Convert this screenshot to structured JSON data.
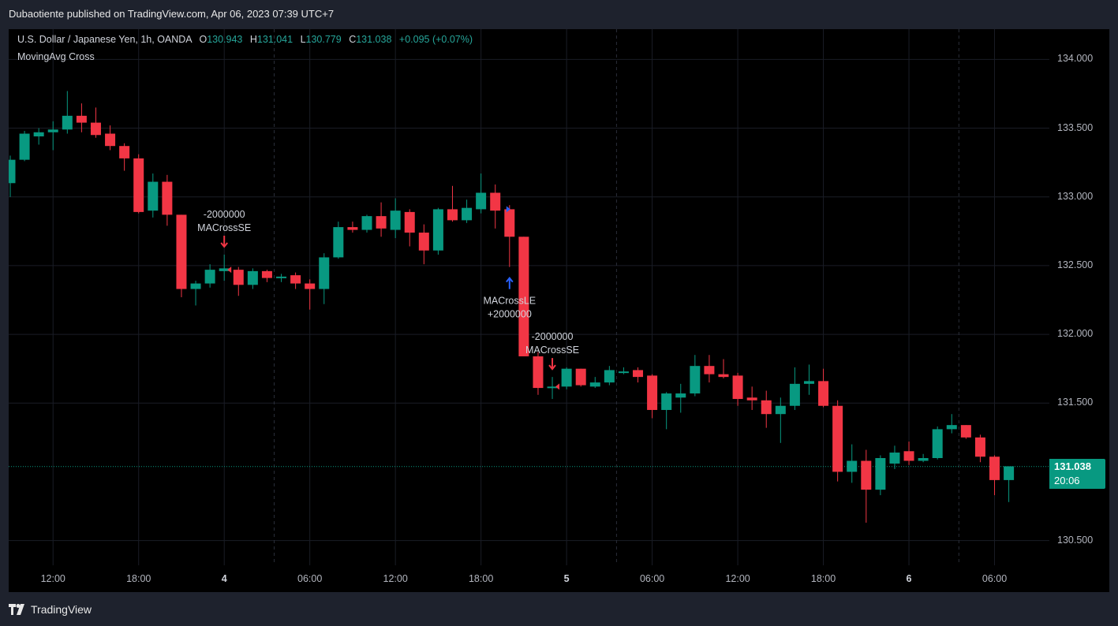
{
  "header": {
    "publisher": "Dubaotiente published on TradingView.com, Apr 06, 2023 07:39 UTC+7"
  },
  "legend": {
    "symbol": "U.S. Dollar / Japanese Yen, 1h, OANDA",
    "o_label": "O",
    "o": "130.943",
    "h_label": "H",
    "h": "131.041",
    "l_label": "L",
    "l": "130.779",
    "c_label": "C",
    "c": "131.038",
    "change": "+0.095 (+0.07%)",
    "indicator": "MovingAvg Cross"
  },
  "last_price": {
    "price": "131.038",
    "countdown": "20:06"
  },
  "footer": {
    "brand": "TradingView"
  },
  "colors": {
    "up": "#089981",
    "down": "#f23645",
    "long_signal": "#2962ff",
    "short_signal": "#f23645",
    "background": "#000000"
  },
  "icons": [
    "tradingview-logo-icon",
    "lightning-icon"
  ],
  "chart_data": {
    "type": "candlestick",
    "title": "U.S. Dollar / Japanese Yen, 1h, OANDA",
    "ylim": [
      130.32,
      134.22
    ],
    "price_ticks": [
      "134.000",
      "133.500",
      "133.000",
      "132.500",
      "132.000",
      "131.500",
      "130.500"
    ],
    "time_ticks": [
      {
        "label": "12:00",
        "bar": 3,
        "bold": false
      },
      {
        "label": "18:00",
        "bar": 9,
        "bold": false
      },
      {
        "label": "4",
        "bar": 15,
        "bold": true
      },
      {
        "label": "06:00",
        "bar": 21,
        "bold": false
      },
      {
        "label": "12:00",
        "bar": 27,
        "bold": false
      },
      {
        "label": "18:00",
        "bar": 33,
        "bold": false
      },
      {
        "label": "5",
        "bar": 39,
        "bold": true
      },
      {
        "label": "06:00",
        "bar": 45,
        "bold": false
      },
      {
        "label": "12:00",
        "bar": 51,
        "bold": false
      },
      {
        "label": "18:00",
        "bar": 57,
        "bold": false
      },
      {
        "label": "6",
        "bar": 63,
        "bold": true
      },
      {
        "label": "06:00",
        "bar": 69,
        "bold": false
      }
    ],
    "session_breaks": [
      18.5,
      42.5,
      66.5
    ],
    "last_price": 131.038,
    "candles": [
      {
        "o": 133.1,
        "h": 133.3,
        "l": 133.0,
        "c": 133.27
      },
      {
        "o": 133.27,
        "h": 133.48,
        "l": 133.26,
        "c": 133.46
      },
      {
        "o": 133.44,
        "h": 133.5,
        "l": 133.38,
        "c": 133.47
      },
      {
        "o": 133.47,
        "h": 133.55,
        "l": 133.34,
        "c": 133.49
      },
      {
        "o": 133.49,
        "h": 133.77,
        "l": 133.46,
        "c": 133.59
      },
      {
        "o": 133.59,
        "h": 133.68,
        "l": 133.47,
        "c": 133.54
      },
      {
        "o": 133.54,
        "h": 133.65,
        "l": 133.43,
        "c": 133.45
      },
      {
        "o": 133.46,
        "h": 133.52,
        "l": 133.34,
        "c": 133.37
      },
      {
        "o": 133.37,
        "h": 133.39,
        "l": 133.19,
        "c": 133.28
      },
      {
        "o": 133.28,
        "h": 133.31,
        "l": 132.88,
        "c": 132.89
      },
      {
        "o": 132.9,
        "h": 133.17,
        "l": 132.85,
        "c": 133.11
      },
      {
        "o": 133.11,
        "h": 133.16,
        "l": 132.79,
        "c": 132.87
      },
      {
        "o": 132.87,
        "h": 132.87,
        "l": 132.27,
        "c": 132.33
      },
      {
        "o": 132.33,
        "h": 132.39,
        "l": 132.21,
        "c": 132.37
      },
      {
        "o": 132.37,
        "h": 132.51,
        "l": 132.34,
        "c": 132.47
      },
      {
        "o": 132.46,
        "h": 132.58,
        "l": 132.39,
        "c": 132.48
      },
      {
        "o": 132.47,
        "h": 132.49,
        "l": 132.28,
        "c": 132.36
      },
      {
        "o": 132.36,
        "h": 132.48,
        "l": 132.33,
        "c": 132.46
      },
      {
        "o": 132.46,
        "h": 132.47,
        "l": 132.38,
        "c": 132.41
      },
      {
        "o": 132.41,
        "h": 132.44,
        "l": 132.38,
        "c": 132.42
      },
      {
        "o": 132.43,
        "h": 132.45,
        "l": 132.33,
        "c": 132.37
      },
      {
        "o": 132.37,
        "h": 132.4,
        "l": 132.18,
        "c": 132.33
      },
      {
        "o": 132.33,
        "h": 132.59,
        "l": 132.22,
        "c": 132.56
      },
      {
        "o": 132.56,
        "h": 132.82,
        "l": 132.55,
        "c": 132.78
      },
      {
        "o": 132.78,
        "h": 132.82,
        "l": 132.74,
        "c": 132.76
      },
      {
        "o": 132.76,
        "h": 132.87,
        "l": 132.74,
        "c": 132.86
      },
      {
        "o": 132.86,
        "h": 132.96,
        "l": 132.71,
        "c": 132.77
      },
      {
        "o": 132.76,
        "h": 132.99,
        "l": 132.7,
        "c": 132.9
      },
      {
        "o": 132.89,
        "h": 132.91,
        "l": 132.64,
        "c": 132.74
      },
      {
        "o": 132.74,
        "h": 132.8,
        "l": 132.51,
        "c": 132.61
      },
      {
        "o": 132.61,
        "h": 132.92,
        "l": 132.58,
        "c": 132.91
      },
      {
        "o": 132.91,
        "h": 133.08,
        "l": 132.82,
        "c": 132.83
      },
      {
        "o": 132.83,
        "h": 132.98,
        "l": 132.81,
        "c": 132.92
      },
      {
        "o": 132.91,
        "h": 133.17,
        "l": 132.88,
        "c": 133.03
      },
      {
        "o": 133.03,
        "h": 133.09,
        "l": 132.77,
        "c": 132.9
      },
      {
        "o": 132.91,
        "h": 132.94,
        "l": 132.49,
        "c": 132.71
      },
      {
        "o": 132.71,
        "h": 132.71,
        "l": 131.84,
        "c": 131.84
      },
      {
        "o": 131.84,
        "h": 131.87,
        "l": 131.56,
        "c": 131.61
      },
      {
        "o": 131.61,
        "h": 131.69,
        "l": 131.53,
        "c": 131.62
      },
      {
        "o": 131.62,
        "h": 131.76,
        "l": 131.6,
        "c": 131.75
      },
      {
        "o": 131.75,
        "h": 131.75,
        "l": 131.62,
        "c": 131.63
      },
      {
        "o": 131.62,
        "h": 131.69,
        "l": 131.61,
        "c": 131.65
      },
      {
        "o": 131.65,
        "h": 131.77,
        "l": 131.63,
        "c": 131.74
      },
      {
        "o": 131.73,
        "h": 131.76,
        "l": 131.71,
        "c": 131.73
      },
      {
        "o": 131.74,
        "h": 131.76,
        "l": 131.65,
        "c": 131.69
      },
      {
        "o": 131.7,
        "h": 131.71,
        "l": 131.39,
        "c": 131.45
      },
      {
        "o": 131.45,
        "h": 131.58,
        "l": 131.31,
        "c": 131.57
      },
      {
        "o": 131.54,
        "h": 131.64,
        "l": 131.43,
        "c": 131.57
      },
      {
        "o": 131.57,
        "h": 131.85,
        "l": 131.55,
        "c": 131.77
      },
      {
        "o": 131.77,
        "h": 131.85,
        "l": 131.65,
        "c": 131.71
      },
      {
        "o": 131.71,
        "h": 131.82,
        "l": 131.68,
        "c": 131.69
      },
      {
        "o": 131.7,
        "h": 131.72,
        "l": 131.48,
        "c": 131.53
      },
      {
        "o": 131.54,
        "h": 131.62,
        "l": 131.45,
        "c": 131.52
      },
      {
        "o": 131.52,
        "h": 131.59,
        "l": 131.32,
        "c": 131.42
      },
      {
        "o": 131.42,
        "h": 131.54,
        "l": 131.21,
        "c": 131.48
      },
      {
        "o": 131.48,
        "h": 131.76,
        "l": 131.45,
        "c": 131.64
      },
      {
        "o": 131.64,
        "h": 131.78,
        "l": 131.56,
        "c": 131.66
      },
      {
        "o": 131.66,
        "h": 131.75,
        "l": 131.47,
        "c": 131.48
      },
      {
        "o": 131.48,
        "h": 131.52,
        "l": 130.93,
        "c": 131.0
      },
      {
        "o": 131.0,
        "h": 131.2,
        "l": 130.92,
        "c": 131.08
      },
      {
        "o": 131.08,
        "h": 131.16,
        "l": 130.63,
        "c": 130.87
      },
      {
        "o": 130.87,
        "h": 131.12,
        "l": 130.83,
        "c": 131.1
      },
      {
        "o": 131.06,
        "h": 131.19,
        "l": 131.02,
        "c": 131.14
      },
      {
        "o": 131.15,
        "h": 131.22,
        "l": 131.05,
        "c": 131.08
      },
      {
        "o": 131.08,
        "h": 131.13,
        "l": 131.07,
        "c": 131.1
      },
      {
        "o": 131.1,
        "h": 131.33,
        "l": 131.09,
        "c": 131.31
      },
      {
        "o": 131.31,
        "h": 131.42,
        "l": 131.28,
        "c": 131.34
      },
      {
        "o": 131.34,
        "h": 131.34,
        "l": 131.24,
        "c": 131.25
      },
      {
        "o": 131.25,
        "h": 131.27,
        "l": 131.07,
        "c": 131.11
      },
      {
        "o": 131.11,
        "h": 131.12,
        "l": 130.83,
        "c": 130.94
      },
      {
        "o": 130.94,
        "h": 131.04,
        "l": 130.78,
        "c": 131.04
      }
    ],
    "signals": [
      {
        "bar": 15,
        "side": "short",
        "label": "MACrossSE",
        "qty": "-2000000",
        "price": 132.47
      },
      {
        "bar": 35,
        "side": "long",
        "label": "MACrossLE",
        "qty": "+2000000",
        "price": 132.91
      },
      {
        "bar": 38,
        "side": "short",
        "label": "MACrossSE",
        "qty": "-2000000",
        "price": 131.62
      }
    ]
  }
}
